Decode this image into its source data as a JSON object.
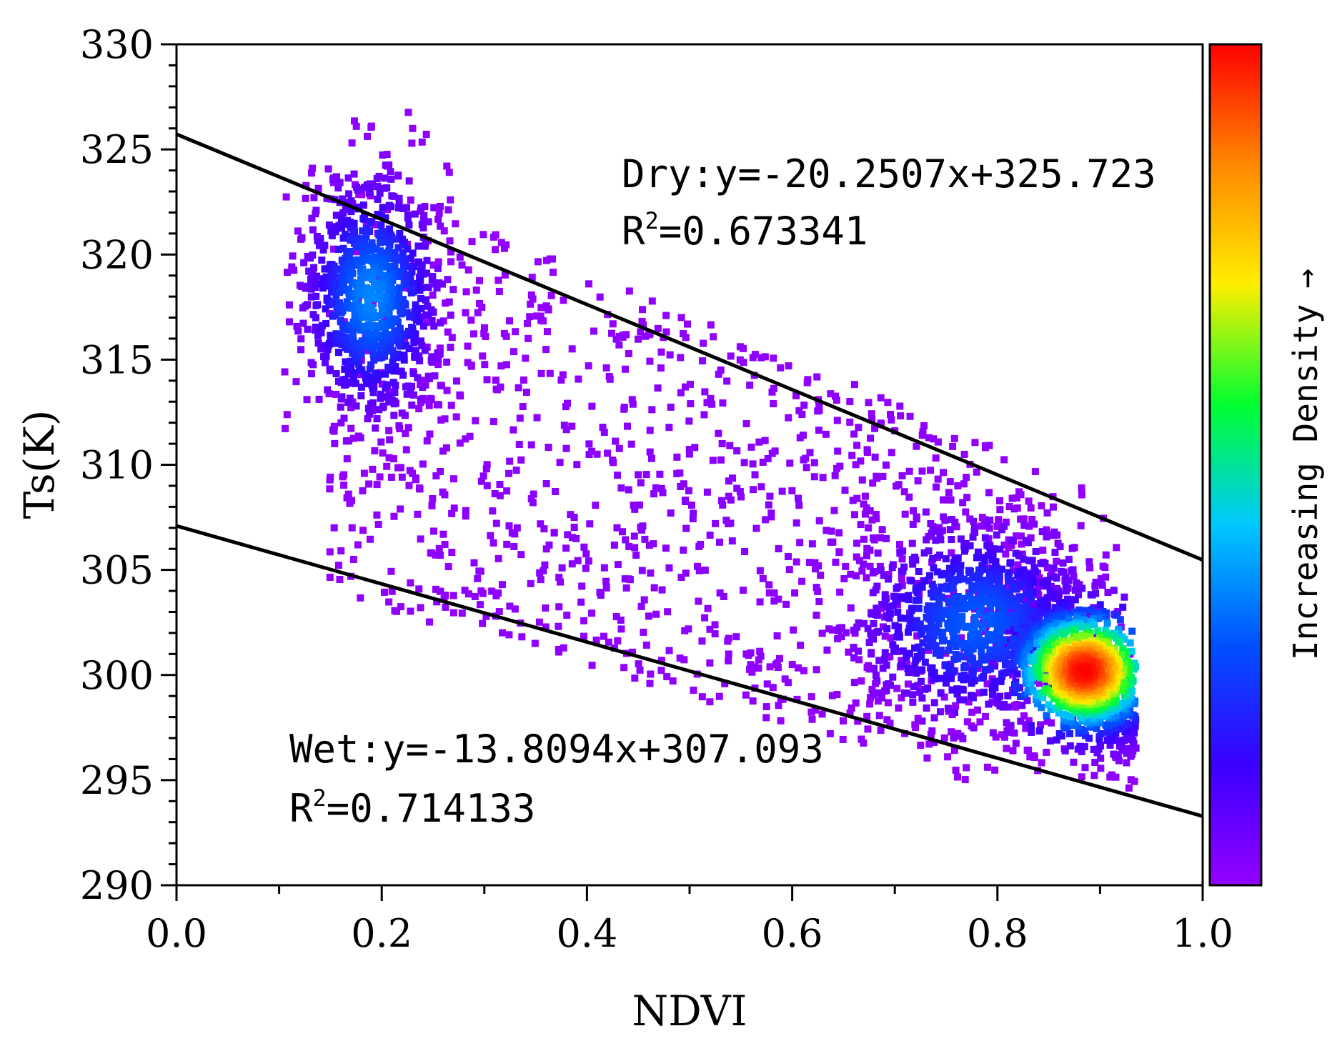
{
  "chart_data": {
    "type": "scatter",
    "subtype": "density-scatter",
    "title": "",
    "xlabel": "NDVI",
    "ylabel": "Ts(K)",
    "xlim": [
      0.0,
      1.0
    ],
    "ylim": [
      290,
      330
    ],
    "x_ticks": [
      "0.0",
      "0.2",
      "0.4",
      "0.6",
      "0.8",
      "1.0"
    ],
    "y_ticks": [
      "290",
      "295",
      "300",
      "305",
      "310",
      "315",
      "320",
      "325",
      "330"
    ],
    "colorbar": {
      "label": "Increasing Density",
      "arrow": "→",
      "colors": [
        "#9400ff",
        "#3a00ff",
        "#0050ff",
        "#00c8ff",
        "#00ff30",
        "#ffee00",
        "#ff8800",
        "#ff0000"
      ]
    },
    "series": [
      {
        "name": "Dry edge",
        "type": "line",
        "slope": -20.2507,
        "intercept": 325.723,
        "color": "#000000",
        "equation": "Dry:y=-20.2507x+325.723",
        "r2_prefix": "R",
        "r2_sup": "2",
        "r2_value": "=0.673341"
      },
      {
        "name": "Wet edge",
        "type": "line",
        "slope": -13.8094,
        "intercept": 307.093,
        "color": "#000000",
        "equation": "Wet:y=-13.8094x+307.093",
        "r2_prefix": "R",
        "r2_sup": "2",
        "r2_value": "=0.714133"
      }
    ],
    "point_clusters": [
      {
        "name": "bare-soil cluster",
        "center_x": 0.19,
        "center_y": 318.0,
        "spread_x": 0.035,
        "spread_y": 3.0,
        "count": 900,
        "peak_density": 0.35
      },
      {
        "name": "vegetation cluster",
        "center_x": 0.885,
        "center_y": 300.2,
        "spread_x": 0.04,
        "spread_y": 1.7,
        "count": 1400,
        "peak_density": 1.0
      },
      {
        "name": "transition cluster",
        "center_x": 0.78,
        "center_y": 302.5,
        "spread_x": 0.06,
        "spread_y": 2.5,
        "count": 900,
        "peak_density": 0.3
      },
      {
        "name": "scattered points",
        "center_x": 0.5,
        "center_y": 308.0,
        "spread_x": 0.22,
        "spread_y": 5.5,
        "count": 1100,
        "peak_density": 0.0
      }
    ]
  }
}
